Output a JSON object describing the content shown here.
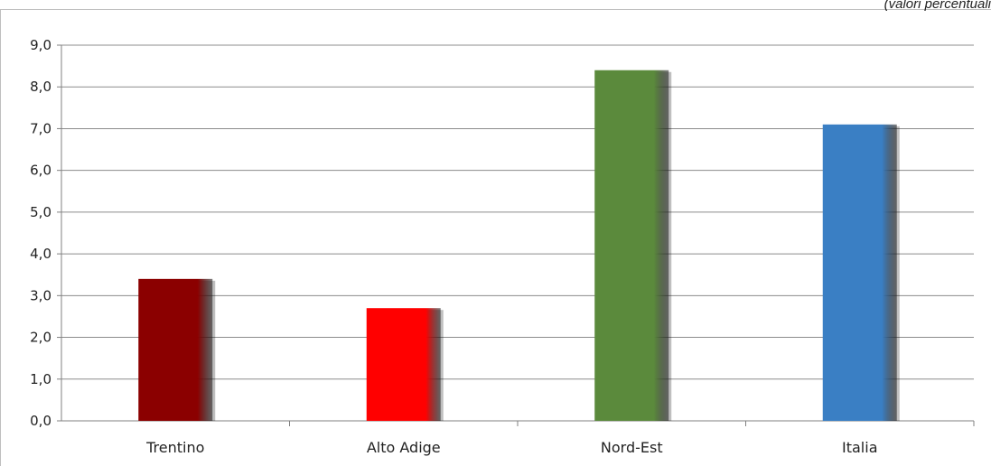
{
  "header": {
    "unit_note": "(valori percentuali"
  },
  "chart_data": {
    "type": "bar",
    "categories": [
      "Trentino",
      "Alto Adige",
      "Nord-Est",
      "Italia"
    ],
    "values": [
      3.4,
      2.7,
      8.4,
      7.1
    ],
    "bar_colors": [
      "#8b0000",
      "#ff0000",
      "#5b8a3c",
      "#3a7fc4"
    ],
    "ylim": [
      0,
      9
    ],
    "yticks": [
      "0,0",
      "1,0",
      "2,0",
      "3,0",
      "4,0",
      "5,0",
      "6,0",
      "7,0",
      "8,0",
      "9,0"
    ],
    "grid": true,
    "legend": "none",
    "title": "",
    "xlabel": "",
    "ylabel": ""
  }
}
